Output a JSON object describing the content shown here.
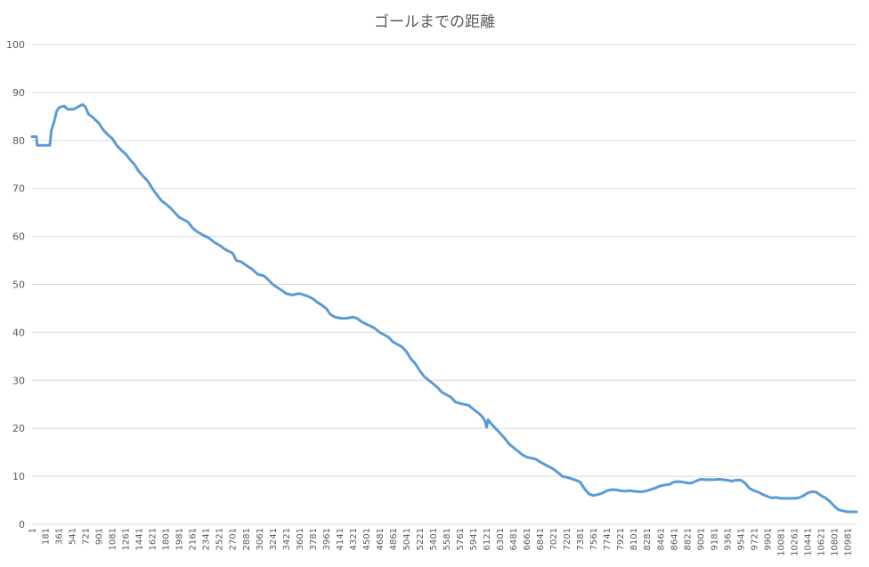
{
  "chart_data": {
    "type": "line",
    "title": "ゴールまでの距離",
    "xlabel": "",
    "ylabel": "",
    "ylim": [
      0,
      100
    ],
    "y_ticks": [
      "0",
      "10",
      "20",
      "30",
      "40",
      "50",
      "60",
      "70",
      "80",
      "90",
      "100"
    ],
    "x_range": [
      1,
      11101
    ],
    "x_tick_labels": [
      "1",
      "181",
      "361",
      "541",
      "721",
      "901",
      "1081",
      "1261",
      "1441",
      "1621",
      "1801",
      "1981",
      "2161",
      "2341",
      "2521",
      "2701",
      "2881",
      "3061",
      "3241",
      "3421",
      "3601",
      "3781",
      "3961",
      "4141",
      "4321",
      "4501",
      "4681",
      "4861",
      "5041",
      "5221",
      "5401",
      "5581",
      "5761",
      "5941",
      "6121",
      "6301",
      "6481",
      "6661",
      "6841",
      "7021",
      "7201",
      "7381",
      "7561",
      "7741",
      "7921",
      "8101",
      "8281",
      "8461",
      "8641",
      "8821",
      "9001",
      "9181",
      "9361",
      "9541",
      "9721",
      "9901",
      "10081",
      "10261",
      "10441",
      "10621",
      "10801",
      "10981"
    ],
    "grid": true,
    "legend": "none",
    "series": [
      {
        "color": "#5b9bd5",
        "points": [
          [
            1,
            80.8
          ],
          [
            60,
            80.8
          ],
          [
            70,
            79.0
          ],
          [
            240,
            79.0
          ],
          [
            260,
            82.0
          ],
          [
            300,
            84.0
          ],
          [
            330,
            86.0
          ],
          [
            360,
            86.8
          ],
          [
            430,
            87.2
          ],
          [
            480,
            86.5
          ],
          [
            560,
            86.5
          ],
          [
            620,
            87.0
          ],
          [
            680,
            87.5
          ],
          [
            720,
            87.0
          ],
          [
            760,
            85.5
          ],
          [
            820,
            84.8
          ],
          [
            900,
            83.6
          ],
          [
            960,
            82.2
          ],
          [
            1020,
            81.2
          ],
          [
            1080,
            80.4
          ],
          [
            1140,
            79.0
          ],
          [
            1200,
            78.0
          ],
          [
            1260,
            77.2
          ],
          [
            1320,
            76.0
          ],
          [
            1380,
            75.0
          ],
          [
            1440,
            73.5
          ],
          [
            1500,
            72.5
          ],
          [
            1560,
            71.5
          ],
          [
            1620,
            70.0
          ],
          [
            1680,
            68.7
          ],
          [
            1740,
            67.5
          ],
          [
            1800,
            66.8
          ],
          [
            1860,
            66.0
          ],
          [
            1920,
            65.0
          ],
          [
            1981,
            64.0
          ],
          [
            2040,
            63.5
          ],
          [
            2100,
            63.0
          ],
          [
            2161,
            61.8
          ],
          [
            2220,
            61.0
          ],
          [
            2300,
            60.3
          ],
          [
            2380,
            59.7
          ],
          [
            2460,
            58.7
          ],
          [
            2521,
            58.2
          ],
          [
            2600,
            57.3
          ],
          [
            2701,
            56.5
          ],
          [
            2750,
            55.0
          ],
          [
            2820,
            54.7
          ],
          [
            2881,
            54.0
          ],
          [
            2960,
            53.2
          ],
          [
            3040,
            52.1
          ],
          [
            3120,
            51.8
          ],
          [
            3180,
            51.0
          ],
          [
            3241,
            50.0
          ],
          [
            3300,
            49.4
          ],
          [
            3360,
            48.8
          ],
          [
            3421,
            48.1
          ],
          [
            3500,
            47.8
          ],
          [
            3601,
            48.1
          ],
          [
            3660,
            47.8
          ],
          [
            3720,
            47.5
          ],
          [
            3781,
            47.0
          ],
          [
            3840,
            46.3
          ],
          [
            3900,
            45.7
          ],
          [
            3961,
            45.0
          ],
          [
            4020,
            43.7
          ],
          [
            4080,
            43.2
          ],
          [
            4141,
            43.0
          ],
          [
            4200,
            42.9
          ],
          [
            4260,
            43.0
          ],
          [
            4321,
            43.2
          ],
          [
            4380,
            42.9
          ],
          [
            4440,
            42.2
          ],
          [
            4501,
            41.7
          ],
          [
            4560,
            41.3
          ],
          [
            4620,
            40.8
          ],
          [
            4681,
            40.0
          ],
          [
            4740,
            39.5
          ],
          [
            4800,
            39.0
          ],
          [
            4861,
            38.0
          ],
          [
            4920,
            37.5
          ],
          [
            4980,
            37.0
          ],
          [
            5041,
            36.0
          ],
          [
            5100,
            34.5
          ],
          [
            5160,
            33.5
          ],
          [
            5221,
            32.0
          ],
          [
            5280,
            30.8
          ],
          [
            5340,
            30.0
          ],
          [
            5401,
            29.3
          ],
          [
            5460,
            28.5
          ],
          [
            5520,
            27.5
          ],
          [
            5581,
            27.0
          ],
          [
            5640,
            26.5
          ],
          [
            5700,
            25.5
          ],
          [
            5761,
            25.2
          ],
          [
            5820,
            25.0
          ],
          [
            5880,
            24.8
          ],
          [
            5941,
            24.0
          ],
          [
            6000,
            23.3
          ],
          [
            6060,
            22.5
          ],
          [
            6100,
            21.5
          ],
          [
            6121,
            20.2
          ],
          [
            6140,
            21.8
          ],
          [
            6180,
            21.0
          ],
          [
            6240,
            20.0
          ],
          [
            6301,
            19.0
          ],
          [
            6360,
            18.0
          ],
          [
            6420,
            16.8
          ],
          [
            6481,
            16.0
          ],
          [
            6540,
            15.3
          ],
          [
            6600,
            14.5
          ],
          [
            6661,
            14.0
          ],
          [
            6720,
            13.8
          ],
          [
            6780,
            13.6
          ],
          [
            6841,
            13.0
          ],
          [
            6900,
            12.5
          ],
          [
            6960,
            12.0
          ],
          [
            7021,
            11.5
          ],
          [
            7080,
            10.8
          ],
          [
            7140,
            10.0
          ],
          [
            7201,
            9.8
          ],
          [
            7260,
            9.5
          ],
          [
            7320,
            9.2
          ],
          [
            7381,
            8.8
          ],
          [
            7420,
            7.8
          ],
          [
            7460,
            7.0
          ],
          [
            7500,
            6.3
          ],
          [
            7561,
            6.0
          ],
          [
            7620,
            6.2
          ],
          [
            7680,
            6.5
          ],
          [
            7741,
            7.0
          ],
          [
            7800,
            7.2
          ],
          [
            7860,
            7.2
          ],
          [
            7921,
            7.0
          ],
          [
            7980,
            6.9
          ],
          [
            8040,
            7.0
          ],
          [
            8101,
            6.9
          ],
          [
            8160,
            6.8
          ],
          [
            8220,
            6.8
          ],
          [
            8281,
            7.0
          ],
          [
            8340,
            7.3
          ],
          [
            8400,
            7.6
          ],
          [
            8461,
            8.0
          ],
          [
            8520,
            8.2
          ],
          [
            8580,
            8.3
          ],
          [
            8641,
            8.8
          ],
          [
            8700,
            8.9
          ],
          [
            8760,
            8.8
          ],
          [
            8821,
            8.6
          ],
          [
            8880,
            8.6
          ],
          [
            8940,
            9.0
          ],
          [
            9001,
            9.4
          ],
          [
            9060,
            9.3
          ],
          [
            9120,
            9.3
          ],
          [
            9181,
            9.3
          ],
          [
            9240,
            9.4
          ],
          [
            9300,
            9.3
          ],
          [
            9361,
            9.2
          ],
          [
            9420,
            9.0
          ],
          [
            9480,
            9.2
          ],
          [
            9541,
            9.2
          ],
          [
            9600,
            8.6
          ],
          [
            9660,
            7.5
          ],
          [
            9721,
            7.0
          ],
          [
            9780,
            6.7
          ],
          [
            9840,
            6.2
          ],
          [
            9901,
            5.8
          ],
          [
            9960,
            5.5
          ],
          [
            10020,
            5.6
          ],
          [
            10081,
            5.4
          ],
          [
            10140,
            5.4
          ],
          [
            10200,
            5.4
          ],
          [
            10261,
            5.4
          ],
          [
            10320,
            5.5
          ],
          [
            10380,
            5.9
          ],
          [
            10441,
            6.5
          ],
          [
            10500,
            6.8
          ],
          [
            10560,
            6.7
          ],
          [
            10621,
            6.0
          ],
          [
            10680,
            5.5
          ],
          [
            10740,
            4.8
          ],
          [
            10801,
            3.8
          ],
          [
            10860,
            3.0
          ],
          [
            10920,
            2.8
          ],
          [
            10981,
            2.6
          ],
          [
            11040,
            2.6
          ],
          [
            11101,
            2.6
          ]
        ]
      }
    ]
  }
}
